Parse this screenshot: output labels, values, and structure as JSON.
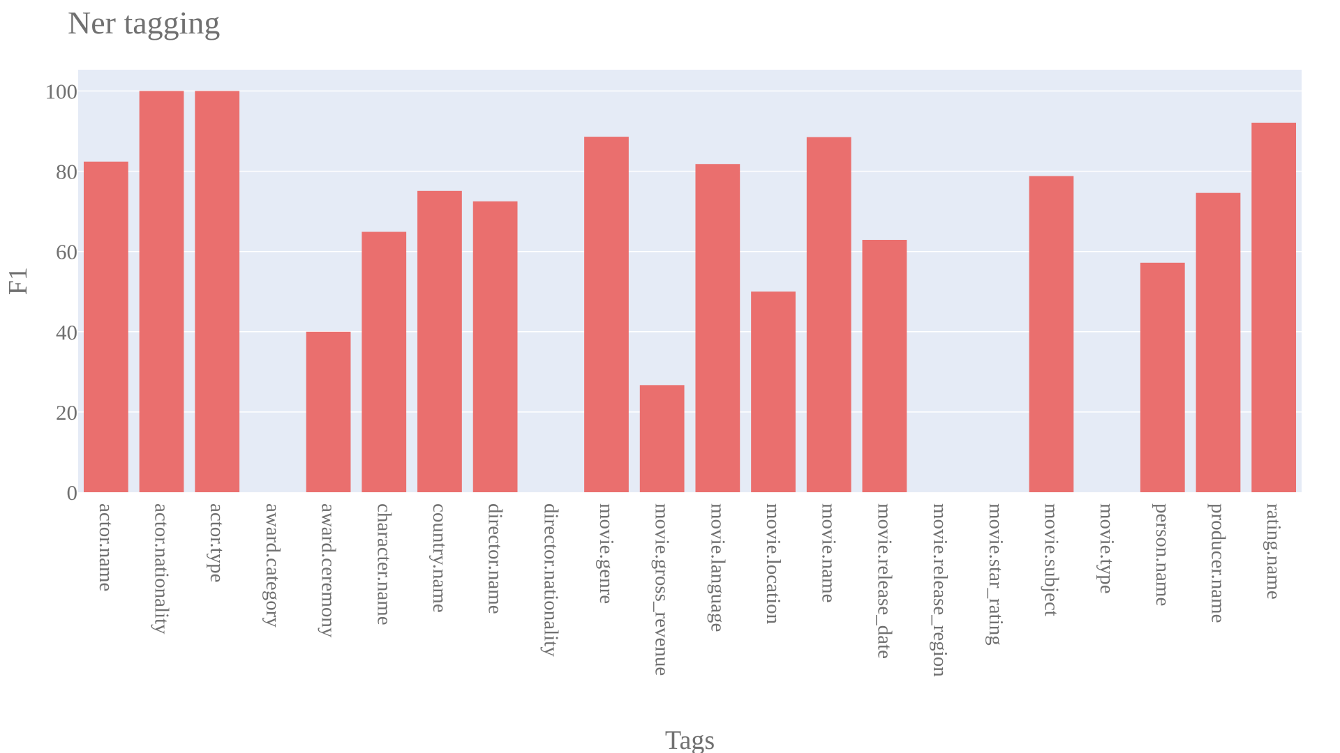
{
  "chart_data": {
    "type": "bar",
    "title": "Ner tagging",
    "xlabel": "Tags",
    "ylabel": "F1",
    "ylim": [
      0,
      105.3
    ],
    "yticks": [
      0,
      20,
      40,
      60,
      80,
      100
    ],
    "grid": true,
    "legend": "none",
    "colors": {
      "bar": "#EA6F6E",
      "plot_bg": "#E5EBF6",
      "grid": "#ffffff",
      "text": "#707070"
    },
    "categories": [
      "actor.name",
      "actor.nationality",
      "actor.type",
      "award.category",
      "award.ceremony",
      "character.name",
      "country.name",
      "director.name",
      "director.nationality",
      "movie.genre",
      "movie.gross_revenue",
      "movie.language",
      "movie.location",
      "movie.name",
      "movie.release_date",
      "movie.release_region",
      "movie.star_rating",
      "movie.subject",
      "movie.type",
      "person.name",
      "producer.name",
      "rating.name"
    ],
    "values": [
      82.4,
      100,
      100,
      0,
      40,
      64.9,
      75.1,
      72.5,
      0,
      88.6,
      26.7,
      81.8,
      50,
      88.5,
      62.9,
      0,
      0,
      78.8,
      0,
      57.2,
      74.6,
      92.1
    ]
  }
}
